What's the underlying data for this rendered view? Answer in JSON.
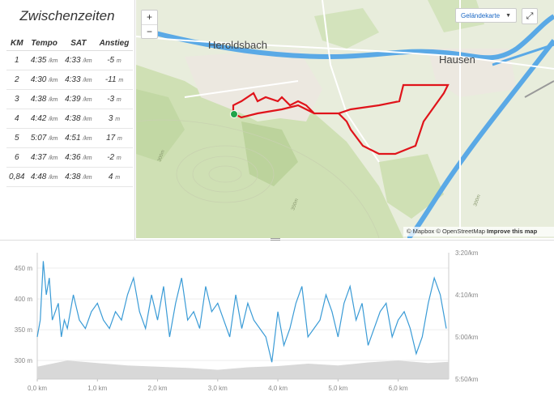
{
  "splits": {
    "title": "Zwischenzeiten",
    "headers": {
      "km": "KM",
      "tempo": "Tempo",
      "sat": "SAT",
      "ascent": "Anstieg"
    },
    "pace_unit": "/km",
    "ascent_unit": "m",
    "rows": [
      {
        "km": "1",
        "tempo": "4:35",
        "sat": "4:33",
        "ascent": "-5"
      },
      {
        "km": "2",
        "tempo": "4:30",
        "sat": "4:33",
        "ascent": "-11"
      },
      {
        "km": "3",
        "tempo": "4:38",
        "sat": "4:39",
        "ascent": "-3"
      },
      {
        "km": "4",
        "tempo": "4:42",
        "sat": "4:38",
        "ascent": "3"
      },
      {
        "km": "5",
        "tempo": "5:07",
        "sat": "4:51",
        "ascent": "17"
      },
      {
        "km": "6",
        "tempo": "4:37",
        "sat": "4:36",
        "ascent": "-2"
      },
      {
        "km": "0,84",
        "tempo": "4:48",
        "sat": "4:38",
        "ascent": "4"
      }
    ]
  },
  "map": {
    "places": [
      "Heroldsbach",
      "Hausen"
    ],
    "contour_labels": [
      "300m",
      "350m",
      "300m"
    ],
    "zoom_in": "+",
    "zoom_out": "−",
    "style_selector": "Geländekarte",
    "fullscreen_icon": "⤢",
    "attribution": {
      "mapbox": "© Mapbox",
      "osm": "© OpenStreetMap",
      "improve": "Improve this map"
    },
    "route_color": "#e0141b",
    "start_color": "#1fa34a"
  },
  "chart_data": {
    "type": "line",
    "title": "",
    "xlabel": "km",
    "x_ticks": [
      "0,0 km",
      "1,0 km",
      "2,0 km",
      "3,0 km",
      "4,0 km",
      "5,0 km",
      "6,0 km"
    ],
    "x_range": [
      0,
      6.84
    ],
    "y_left_ticks": [
      "450 m",
      "400 m",
      "350 m",
      "300 m"
    ],
    "y_left_range": [
      270,
      475
    ],
    "y_right_ticks": [
      "3:20/km",
      "4:10/km",
      "5:00/km",
      "5:50/km"
    ],
    "series": [
      {
        "name": "Pace",
        "unit": "s/km",
        "color": "#3a9bd6",
        "x": [
          0.0,
          0.05,
          0.1,
          0.15,
          0.2,
          0.25,
          0.3,
          0.35,
          0.4,
          0.45,
          0.5,
          0.6,
          0.7,
          0.8,
          0.9,
          1.0,
          1.1,
          1.2,
          1.3,
          1.4,
          1.5,
          1.6,
          1.7,
          1.8,
          1.9,
          2.0,
          2.1,
          2.2,
          2.3,
          2.4,
          2.5,
          2.6,
          2.7,
          2.8,
          2.9,
          3.0,
          3.1,
          3.2,
          3.3,
          3.4,
          3.5,
          3.6,
          3.7,
          3.8,
          3.9,
          4.0,
          4.1,
          4.2,
          4.3,
          4.4,
          4.5,
          4.6,
          4.7,
          4.8,
          4.9,
          5.0,
          5.1,
          5.2,
          5.3,
          5.4,
          5.5,
          5.6,
          5.7,
          5.8,
          5.9,
          6.0,
          6.1,
          6.2,
          6.3,
          6.4,
          6.5,
          6.6,
          6.7,
          6.8
        ],
        "values": [
          300,
          280,
          210,
          250,
          230,
          280,
          270,
          260,
          300,
          280,
          290,
          250,
          280,
          290,
          270,
          260,
          280,
          290,
          270,
          280,
          250,
          230,
          270,
          290,
          250,
          280,
          240,
          300,
          260,
          230,
          280,
          270,
          290,
          240,
          270,
          260,
          280,
          300,
          250,
          290,
          260,
          280,
          290,
          300,
          330,
          270,
          310,
          290,
          260,
          240,
          300,
          290,
          280,
          250,
          270,
          300,
          260,
          240,
          280,
          260,
          310,
          290,
          270,
          260,
          300,
          280,
          270,
          290,
          320,
          300,
          260,
          230,
          250,
          290
        ]
      },
      {
        "name": "Elevation",
        "unit": "m",
        "color": "#d8d8d8",
        "x": [
          0.0,
          0.5,
          1.0,
          1.5,
          2.0,
          2.5,
          3.0,
          3.5,
          4.0,
          4.5,
          5.0,
          5.5,
          6.0,
          6.5,
          6.84
        ],
        "values": [
          290,
          300,
          296,
          292,
          290,
          288,
          285,
          289,
          291,
          295,
          292,
          297,
          300,
          296,
          298
        ]
      }
    ]
  }
}
